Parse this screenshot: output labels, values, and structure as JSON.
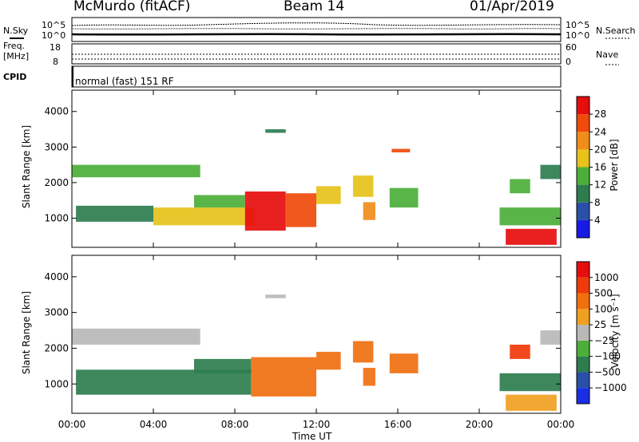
{
  "header": {
    "station": "McMurdo (fitACF)",
    "beam": "Beam 14",
    "date": "01/Apr/2019"
  },
  "noise_panel": {
    "left_label": "N.Sky",
    "right_label": "N.Search",
    "y_ticks_left": [
      "10^5",
      "10^0"
    ],
    "y_ticks_right": [
      "10^5",
      "10^0"
    ]
  },
  "freq_panel": {
    "left_label_1": "Freq.",
    "left_label_2": "[MHz]",
    "right_label": "Nave",
    "y_ticks_left": [
      "18",
      "8"
    ],
    "y_ticks_right": [
      "60",
      "0"
    ]
  },
  "cpid": {
    "label": "CPID",
    "text": "normal (fast) 151 RF"
  },
  "colors": {
    "power": [
      "#1a1ae6",
      "#2a4fa8",
      "#2e7d4f",
      "#4caf3a",
      "#e6c21a",
      "#f08c1a",
      "#f04a0a",
      "#e60d0d"
    ],
    "velocity": [
      "#1a2ee6",
      "#2a4fa8",
      "#2e7d4f",
      "#4caf3a",
      "#b8b8b8",
      "#f0a020",
      "#f07010",
      "#f03a0a",
      "#e60d0d"
    ]
  },
  "chart_data": [
    {
      "type": "heatmap",
      "name": "power",
      "ylabel": "Slant Range [km]",
      "xlabel": "Time UT",
      "x_ticks": [
        "00:00",
        "04:00",
        "08:00",
        "12:00",
        "16:00",
        "20:00",
        "00:00"
      ],
      "y_ticks": [
        "1000",
        "2000",
        "3000",
        "4000"
      ],
      "xlim": [
        0,
        24
      ],
      "ylim": [
        180,
        4600
      ],
      "colorbar_label": "Power [dB]",
      "colorbar_ticks": [
        "4",
        "8",
        "12",
        "16",
        "20",
        "24",
        "28"
      ],
      "colorbar_range": [
        0,
        32
      ],
      "regions": [
        {
          "t0": 0.0,
          "t1": 6.3,
          "r0": 2150,
          "r1": 2500,
          "level": 3
        },
        {
          "t0": 0.2,
          "t1": 4.0,
          "r0": 900,
          "r1": 1350,
          "level": 2
        },
        {
          "t0": 4.0,
          "t1": 9.0,
          "r0": 800,
          "r1": 1300,
          "level": 4
        },
        {
          "t0": 6.0,
          "t1": 8.5,
          "r0": 1300,
          "r1": 1650,
          "level": 3
        },
        {
          "t0": 8.5,
          "t1": 10.5,
          "r0": 650,
          "r1": 1750,
          "level": 7
        },
        {
          "t0": 10.5,
          "t1": 12.0,
          "r0": 750,
          "r1": 1700,
          "level": 6
        },
        {
          "t0": 12.0,
          "t1": 13.2,
          "r0": 1400,
          "r1": 1900,
          "level": 4
        },
        {
          "t0": 13.8,
          "t1": 14.8,
          "r0": 1600,
          "r1": 2200,
          "level": 4
        },
        {
          "t0": 14.3,
          "t1": 14.9,
          "r0": 950,
          "r1": 1450,
          "level": 5
        },
        {
          "t0": 15.6,
          "t1": 17.0,
          "r0": 1300,
          "r1": 1850,
          "level": 3
        },
        {
          "t0": 9.5,
          "t1": 10.5,
          "r0": 3400,
          "r1": 3500,
          "level": 2
        },
        {
          "t0": 15.7,
          "t1": 16.6,
          "r0": 2850,
          "r1": 2950,
          "level": 6
        },
        {
          "t0": 21.0,
          "t1": 24.0,
          "r0": 800,
          "r1": 1300,
          "level": 3
        },
        {
          "t0": 21.3,
          "t1": 23.8,
          "r0": 250,
          "r1": 700,
          "level": 7
        },
        {
          "t0": 23.0,
          "t1": 24.0,
          "r0": 2100,
          "r1": 2500,
          "level": 2
        },
        {
          "t0": 21.5,
          "t1": 22.5,
          "r0": 1700,
          "r1": 2100,
          "level": 3
        }
      ]
    },
    {
      "type": "heatmap",
      "name": "velocity",
      "ylabel": "Slant Range [km]",
      "xlabel": "Time UT",
      "x_ticks": [
        "00:00",
        "04:00",
        "08:00",
        "12:00",
        "16:00",
        "20:00",
        "00:00"
      ],
      "y_ticks": [
        "1000",
        "2000",
        "3000",
        "4000"
      ],
      "xlim": [
        0,
        24
      ],
      "ylim": [
        180,
        4600
      ],
      "colorbar_label": "Velocity [m s⁻¹]",
      "colorbar_ticks": [
        "1000",
        "500",
        "100",
        "25",
        "−25",
        "−100",
        "−500",
        "−1000"
      ],
      "regions": [
        {
          "t0": 0.0,
          "t1": 6.3,
          "r0": 2100,
          "r1": 2550,
          "level": 4
        },
        {
          "t0": 0.2,
          "t1": 8.8,
          "r0": 700,
          "r1": 1400,
          "level": 2
        },
        {
          "t0": 6.0,
          "t1": 8.8,
          "r0": 1300,
          "r1": 1700,
          "level": 2
        },
        {
          "t0": 8.8,
          "t1": 12.0,
          "r0": 650,
          "r1": 1750,
          "level": 6
        },
        {
          "t0": 12.0,
          "t1": 13.2,
          "r0": 1400,
          "r1": 1900,
          "level": 6
        },
        {
          "t0": 13.8,
          "t1": 14.8,
          "r0": 1600,
          "r1": 2200,
          "level": 6
        },
        {
          "t0": 14.3,
          "t1": 14.9,
          "r0": 950,
          "r1": 1450,
          "level": 6
        },
        {
          "t0": 15.6,
          "t1": 17.0,
          "r0": 1300,
          "r1": 1850,
          "level": 6
        },
        {
          "t0": 9.5,
          "t1": 10.5,
          "r0": 3400,
          "r1": 3500,
          "level": 4
        },
        {
          "t0": 21.0,
          "t1": 24.0,
          "r0": 800,
          "r1": 1300,
          "level": 2
        },
        {
          "t0": 21.3,
          "t1": 23.8,
          "r0": 250,
          "r1": 700,
          "level": 5
        },
        {
          "t0": 23.0,
          "t1": 24.0,
          "r0": 2100,
          "r1": 2500,
          "level": 4
        },
        {
          "t0": 21.5,
          "t1": 22.5,
          "r0": 1700,
          "r1": 2100,
          "level": 7
        }
      ]
    }
  ]
}
